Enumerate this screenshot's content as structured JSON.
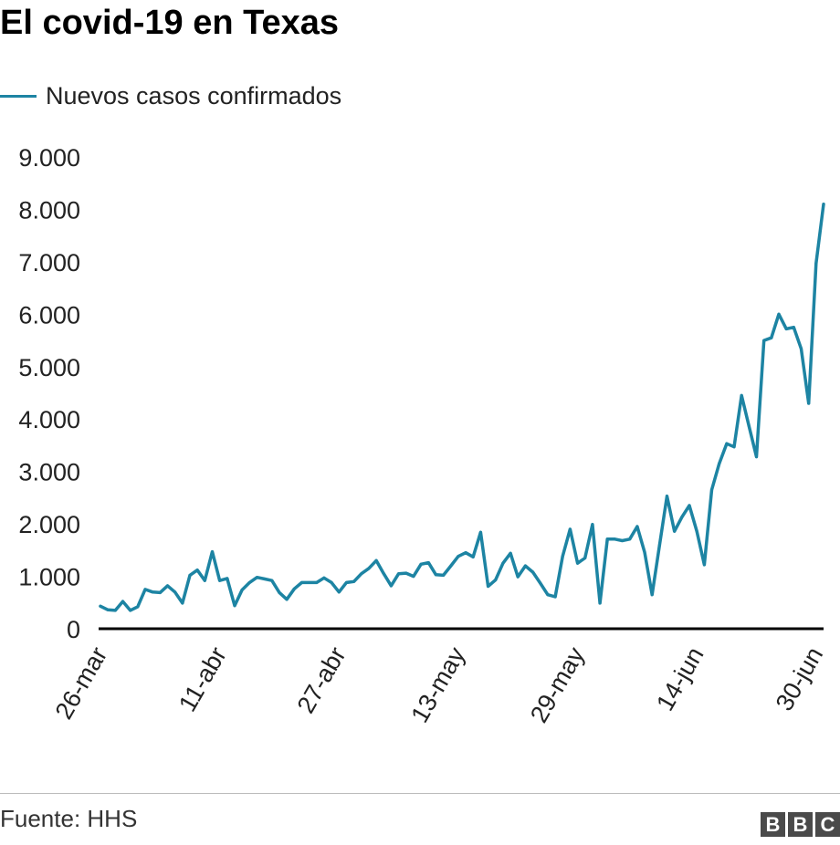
{
  "title": "El covid-19 en Texas",
  "source": "Fuente: HHS",
  "logo": {
    "letters": [
      "B",
      "B",
      "C"
    ]
  },
  "colors": {
    "series": "#1d84a3",
    "axis": "#000000",
    "text": "#222222"
  },
  "chart_data": {
    "type": "line",
    "title": "El covid-19 en Texas",
    "xlabel": "",
    "ylabel": "",
    "ylim": [
      0,
      9000
    ],
    "yticks": [
      {
        "value": 0,
        "label": "0"
      },
      {
        "value": 1000,
        "label": "1.000"
      },
      {
        "value": 2000,
        "label": "2.000"
      },
      {
        "value": 3000,
        "label": "3.000"
      },
      {
        "value": 4000,
        "label": "4.000"
      },
      {
        "value": 5000,
        "label": "5.000"
      },
      {
        "value": 6000,
        "label": "6.000"
      },
      {
        "value": 7000,
        "label": "7.000"
      },
      {
        "value": 8000,
        "label": "8.000"
      },
      {
        "value": 9000,
        "label": "9.000"
      }
    ],
    "xlim": [
      "2020-03-25",
      "2020-06-30"
    ],
    "xticks": [
      {
        "date": "2020-03-26",
        "label": "26-mar"
      },
      {
        "date": "2020-04-11",
        "label": "11-abr"
      },
      {
        "date": "2020-04-27",
        "label": "27-abr"
      },
      {
        "date": "2020-05-13",
        "label": "13-may"
      },
      {
        "date": "2020-05-29",
        "label": "29-may"
      },
      {
        "date": "2020-06-14",
        "label": "14-jun"
      },
      {
        "date": "2020-06-30",
        "label": "30-jun"
      }
    ],
    "legend": "top-left",
    "grid": false,
    "series": [
      {
        "name": "Nuevos casos confirmados",
        "color": "#1d84a3",
        "dates": [
          "2020-03-25",
          "2020-03-26",
          "2020-03-27",
          "2020-03-28",
          "2020-03-29",
          "2020-03-30",
          "2020-03-31",
          "2020-04-01",
          "2020-04-02",
          "2020-04-03",
          "2020-04-04",
          "2020-04-05",
          "2020-04-06",
          "2020-04-07",
          "2020-04-08",
          "2020-04-09",
          "2020-04-10",
          "2020-04-11",
          "2020-04-12",
          "2020-04-13",
          "2020-04-14",
          "2020-04-15",
          "2020-04-16",
          "2020-04-17",
          "2020-04-18",
          "2020-04-19",
          "2020-04-20",
          "2020-04-21",
          "2020-04-22",
          "2020-04-23",
          "2020-04-24",
          "2020-04-25",
          "2020-04-26",
          "2020-04-27",
          "2020-04-28",
          "2020-04-29",
          "2020-04-30",
          "2020-05-01",
          "2020-05-02",
          "2020-05-03",
          "2020-05-04",
          "2020-05-05",
          "2020-05-06",
          "2020-05-07",
          "2020-05-08",
          "2020-05-09",
          "2020-05-10",
          "2020-05-11",
          "2020-05-12",
          "2020-05-13",
          "2020-05-14",
          "2020-05-15",
          "2020-05-16",
          "2020-05-17",
          "2020-05-18",
          "2020-05-19",
          "2020-05-20",
          "2020-05-21",
          "2020-05-22",
          "2020-05-23",
          "2020-05-24",
          "2020-05-25",
          "2020-05-26",
          "2020-05-27",
          "2020-05-28",
          "2020-05-29",
          "2020-05-30",
          "2020-05-31",
          "2020-06-01",
          "2020-06-02",
          "2020-06-03",
          "2020-06-04",
          "2020-06-05",
          "2020-06-06",
          "2020-06-07",
          "2020-06-08",
          "2020-06-09",
          "2020-06-10",
          "2020-06-11",
          "2020-06-12",
          "2020-06-13",
          "2020-06-14",
          "2020-06-15",
          "2020-06-16",
          "2020-06-17",
          "2020-06-18",
          "2020-06-19",
          "2020-06-20",
          "2020-06-21",
          "2020-06-22",
          "2020-06-23",
          "2020-06-24",
          "2020-06-25",
          "2020-06-26",
          "2020-06-27",
          "2020-06-28",
          "2020-06-29",
          "2020-06-30"
        ],
        "values": [
          430,
          360,
          350,
          520,
          350,
          420,
          750,
          700,
          690,
          820,
          700,
          490,
          1020,
          1120,
          920,
          1470,
          920,
          960,
          440,
          740,
          880,
          980,
          950,
          920,
          690,
          560,
          760,
          880,
          880,
          880,
          970,
          880,
          700,
          880,
          900,
          1050,
          1150,
          1300,
          1050,
          820,
          1050,
          1060,
          1000,
          1230,
          1260,
          1030,
          1020,
          1200,
          1380,
          1450,
          1370,
          1840,
          810,
          930,
          1250,
          1440,
          990,
          1200,
          1080,
          870,
          650,
          610,
          1380,
          1900,
          1250,
          1350,
          1990,
          490,
          1710,
          1710,
          1680,
          1710,
          1950,
          1460,
          650,
          1600,
          2530,
          1860,
          2130,
          2350,
          1860,
          1220,
          2650,
          3150,
          3530,
          3470,
          4450,
          3860,
          3280,
          5500,
          5550,
          6000,
          5720,
          5750,
          5340,
          4300,
          6970,
          8100
        ]
      }
    ]
  }
}
